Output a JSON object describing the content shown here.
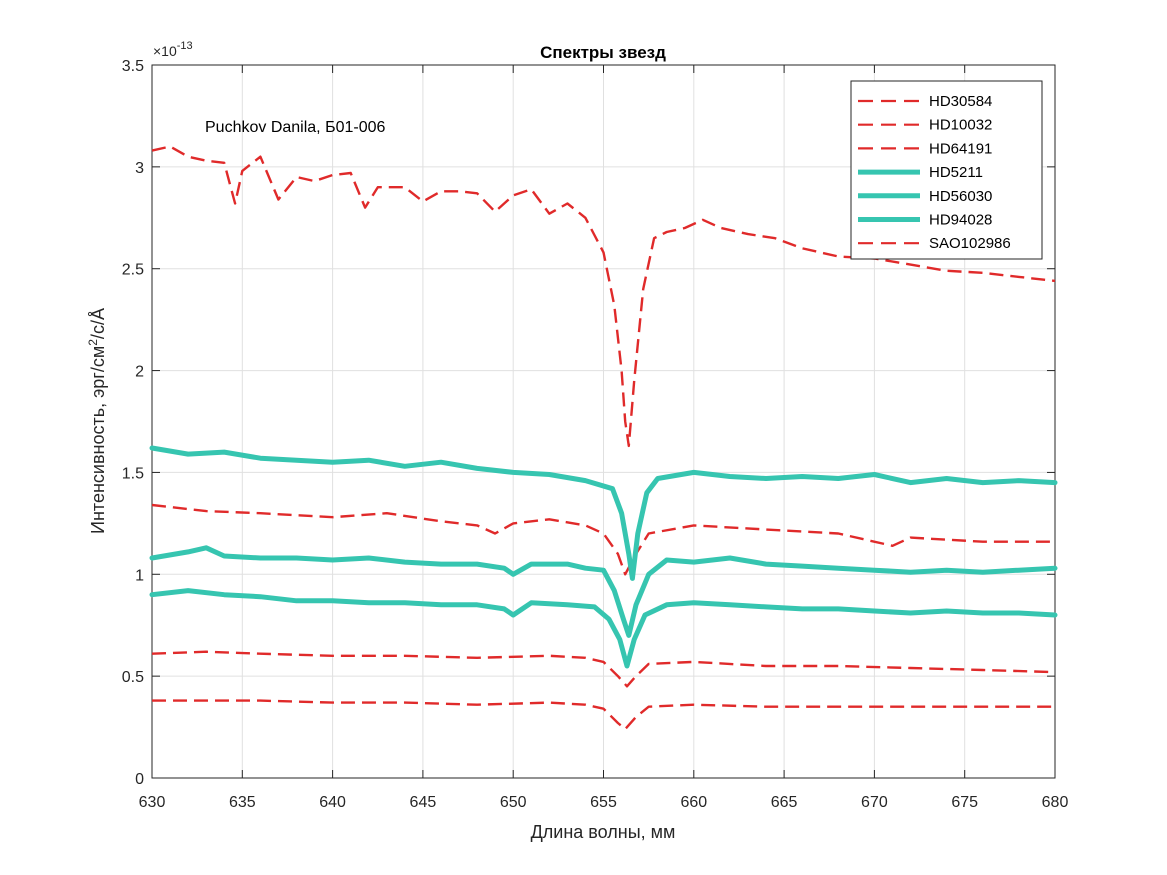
{
  "chart_data": {
    "type": "line",
    "title": "Спектры звезд",
    "annotation": "Puchkov Danila, Б01-006",
    "xlabel": "Длина волны, мм",
    "ylabel_parts": [
      "Интенсивность, эрг/см",
      "2",
      "/с/Å"
    ],
    "scale_base": "×10",
    "scale_exp": "-13",
    "xlim": [
      630,
      680
    ],
    "ylim": [
      0,
      3.5
    ],
    "x_ticks": [
      630,
      635,
      640,
      645,
      650,
      655,
      660,
      665,
      670,
      675,
      680
    ],
    "x_tick_labels": [
      "630",
      "635",
      "640",
      "645",
      "650",
      "655",
      "660",
      "665",
      "670",
      "675",
      "680"
    ],
    "y_ticks": [
      0,
      0.5,
      1,
      1.5,
      2,
      2.5,
      3,
      3.5
    ],
    "y_tick_labels": [
      "0",
      "0.5",
      "1",
      "1.5",
      "2",
      "2.5",
      "3",
      "3.5"
    ],
    "grid": true,
    "legend_position": "top-right",
    "colors": {
      "red": "#e02a2a",
      "teal": "#36c5b0",
      "axis": "#262626",
      "grid": "#e0e0e0"
    },
    "series": [
      {
        "name": "HD30584",
        "style": "dashed",
        "color": "#e02a2a",
        "points": [
          [
            630,
            0.61
          ],
          [
            633,
            0.62
          ],
          [
            636,
            0.61
          ],
          [
            640,
            0.6
          ],
          [
            644,
            0.6
          ],
          [
            648,
            0.59
          ],
          [
            652,
            0.6
          ],
          [
            654,
            0.59
          ],
          [
            655,
            0.57
          ],
          [
            655.8,
            0.5
          ],
          [
            656.3,
            0.45
          ],
          [
            656.8,
            0.5
          ],
          [
            657.5,
            0.56
          ],
          [
            660,
            0.57
          ],
          [
            664,
            0.55
          ],
          [
            668,
            0.55
          ],
          [
            672,
            0.54
          ],
          [
            676,
            0.53
          ],
          [
            680,
            0.52
          ]
        ]
      },
      {
        "name": "HD10032",
        "style": "dashed",
        "color": "#e02a2a",
        "points": [
          [
            630,
            0.38
          ],
          [
            633,
            0.38
          ],
          [
            636,
            0.38
          ],
          [
            640,
            0.37
          ],
          [
            644,
            0.37
          ],
          [
            648,
            0.36
          ],
          [
            652,
            0.37
          ],
          [
            654,
            0.36
          ],
          [
            655,
            0.34
          ],
          [
            655.8,
            0.27
          ],
          [
            656.2,
            0.24
          ],
          [
            656.8,
            0.3
          ],
          [
            657.5,
            0.35
          ],
          [
            660,
            0.36
          ],
          [
            664,
            0.35
          ],
          [
            668,
            0.35
          ],
          [
            672,
            0.35
          ],
          [
            676,
            0.35
          ],
          [
            680,
            0.35
          ]
        ]
      },
      {
        "name": "HD64191",
        "style": "dashed",
        "color": "#e02a2a",
        "points": [
          [
            630,
            1.34
          ],
          [
            633,
            1.31
          ],
          [
            636,
            1.3
          ],
          [
            640,
            1.28
          ],
          [
            643,
            1.3
          ],
          [
            646,
            1.26
          ],
          [
            648,
            1.24
          ],
          [
            649,
            1.2
          ],
          [
            650,
            1.25
          ],
          [
            652,
            1.27
          ],
          [
            654,
            1.24
          ],
          [
            655,
            1.2
          ],
          [
            655.8,
            1.1
          ],
          [
            656.2,
            1.0
          ],
          [
            656.8,
            1.1
          ],
          [
            657.5,
            1.2
          ],
          [
            660,
            1.24
          ],
          [
            664,
            1.22
          ],
          [
            668,
            1.2
          ],
          [
            671,
            1.14
          ],
          [
            672,
            1.18
          ],
          [
            676,
            1.16
          ],
          [
            680,
            1.16
          ]
        ]
      },
      {
        "name": "HD5211",
        "style": "solid",
        "color": "#36c5b0",
        "points": [
          [
            630,
            1.62
          ],
          [
            632,
            1.59
          ],
          [
            634,
            1.6
          ],
          [
            636,
            1.57
          ],
          [
            638,
            1.56
          ],
          [
            640,
            1.55
          ],
          [
            642,
            1.56
          ],
          [
            644,
            1.53
          ],
          [
            646,
            1.55
          ],
          [
            648,
            1.52
          ],
          [
            650,
            1.5
          ],
          [
            652,
            1.49
          ],
          [
            654,
            1.46
          ],
          [
            655.5,
            1.42
          ],
          [
            656,
            1.3
          ],
          [
            656.4,
            1.1
          ],
          [
            656.6,
            0.98
          ],
          [
            656.9,
            1.2
          ],
          [
            657.4,
            1.4
          ],
          [
            658,
            1.47
          ],
          [
            660,
            1.5
          ],
          [
            662,
            1.48
          ],
          [
            664,
            1.47
          ],
          [
            666,
            1.48
          ],
          [
            668,
            1.47
          ],
          [
            670,
            1.49
          ],
          [
            672,
            1.45
          ],
          [
            674,
            1.47
          ],
          [
            676,
            1.45
          ],
          [
            678,
            1.46
          ],
          [
            680,
            1.45
          ]
        ]
      },
      {
        "name": "HD56030",
        "style": "solid",
        "color": "#36c5b0",
        "points": [
          [
            630,
            1.08
          ],
          [
            632,
            1.11
          ],
          [
            633,
            1.13
          ],
          [
            634,
            1.09
          ],
          [
            636,
            1.08
          ],
          [
            638,
            1.08
          ],
          [
            640,
            1.07
          ],
          [
            642,
            1.08
          ],
          [
            644,
            1.06
          ],
          [
            646,
            1.05
          ],
          [
            648,
            1.05
          ],
          [
            649.5,
            1.03
          ],
          [
            650,
            1.0
          ],
          [
            651,
            1.05
          ],
          [
            653,
            1.05
          ],
          [
            654,
            1.03
          ],
          [
            655,
            1.02
          ],
          [
            655.6,
            0.92
          ],
          [
            656.1,
            0.78
          ],
          [
            656.4,
            0.7
          ],
          [
            656.8,
            0.85
          ],
          [
            657.5,
            1.0
          ],
          [
            658.5,
            1.07
          ],
          [
            660,
            1.06
          ],
          [
            662,
            1.08
          ],
          [
            664,
            1.05
          ],
          [
            666,
            1.04
          ],
          [
            668,
            1.03
          ],
          [
            670,
            1.02
          ],
          [
            672,
            1.01
          ],
          [
            674,
            1.02
          ],
          [
            676,
            1.01
          ],
          [
            678,
            1.02
          ],
          [
            680,
            1.03
          ]
        ]
      },
      {
        "name": "HD94028",
        "style": "solid",
        "color": "#36c5b0",
        "points": [
          [
            630,
            0.9
          ],
          [
            632,
            0.92
          ],
          [
            634,
            0.9
          ],
          [
            636,
            0.89
          ],
          [
            638,
            0.87
          ],
          [
            640,
            0.87
          ],
          [
            642,
            0.86
          ],
          [
            644,
            0.86
          ],
          [
            646,
            0.85
          ],
          [
            648,
            0.85
          ],
          [
            649.5,
            0.83
          ],
          [
            650,
            0.8
          ],
          [
            651,
            0.86
          ],
          [
            653,
            0.85
          ],
          [
            654.5,
            0.84
          ],
          [
            655.3,
            0.78
          ],
          [
            655.9,
            0.68
          ],
          [
            656.3,
            0.55
          ],
          [
            656.7,
            0.68
          ],
          [
            657.3,
            0.8
          ],
          [
            658.5,
            0.85
          ],
          [
            660,
            0.86
          ],
          [
            662,
            0.85
          ],
          [
            664,
            0.84
          ],
          [
            666,
            0.83
          ],
          [
            668,
            0.83
          ],
          [
            670,
            0.82
          ],
          [
            672,
            0.81
          ],
          [
            674,
            0.82
          ],
          [
            676,
            0.81
          ],
          [
            678,
            0.81
          ],
          [
            680,
            0.8
          ]
        ]
      },
      {
        "name": "SAO102986",
        "style": "dashed",
        "color": "#e02a2a",
        "points": [
          [
            630,
            3.08
          ],
          [
            631,
            3.1
          ],
          [
            632,
            3.05
          ],
          [
            633,
            3.03
          ],
          [
            634,
            3.02
          ],
          [
            634.6,
            2.82
          ],
          [
            635,
            2.98
          ],
          [
            636,
            3.05
          ],
          [
            637,
            2.84
          ],
          [
            638,
            2.95
          ],
          [
            639,
            2.93
          ],
          [
            640,
            2.96
          ],
          [
            641,
            2.97
          ],
          [
            641.8,
            2.8
          ],
          [
            642.5,
            2.9
          ],
          [
            644,
            2.9
          ],
          [
            645,
            2.83
          ],
          [
            646,
            2.88
          ],
          [
            647,
            2.88
          ],
          [
            648,
            2.87
          ],
          [
            649,
            2.78
          ],
          [
            650,
            2.86
          ],
          [
            651,
            2.89
          ],
          [
            652,
            2.77
          ],
          [
            653,
            2.82
          ],
          [
            654,
            2.75
          ],
          [
            655,
            2.58
          ],
          [
            655.6,
            2.32
          ],
          [
            656,
            2.0
          ],
          [
            656.2,
            1.75
          ],
          [
            656.4,
            1.63
          ],
          [
            656.7,
            1.95
          ],
          [
            657.2,
            2.4
          ],
          [
            657.8,
            2.65
          ],
          [
            658.5,
            2.68
          ],
          [
            659.5,
            2.7
          ],
          [
            660.5,
            2.74
          ],
          [
            661.5,
            2.7
          ],
          [
            663,
            2.67
          ],
          [
            664.5,
            2.65
          ],
          [
            666,
            2.6
          ],
          [
            668,
            2.56
          ],
          [
            670,
            2.55
          ],
          [
            672,
            2.52
          ],
          [
            674,
            2.49
          ],
          [
            676,
            2.48
          ],
          [
            678,
            2.46
          ],
          [
            680,
            2.44
          ]
        ]
      }
    ]
  }
}
